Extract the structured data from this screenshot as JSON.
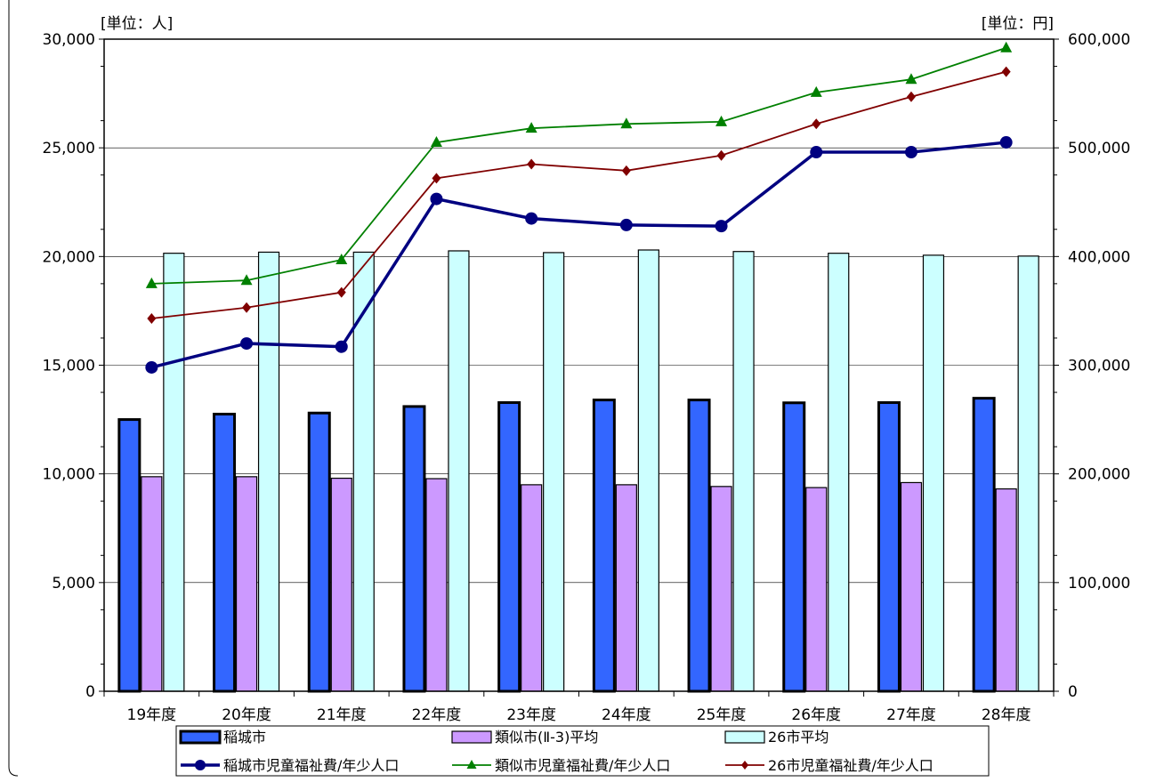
{
  "chart_data": {
    "type": "bar",
    "categories": [
      "19年度",
      "20年度",
      "21年度",
      "22年度",
      "23年度",
      "24年度",
      "25年度",
      "26年度",
      "27年度",
      "28年度"
    ],
    "left_axis": {
      "unit_label": "[単位：人]",
      "ylim": [
        0,
        30000
      ],
      "ticks": [
        0,
        5000,
        10000,
        15000,
        20000,
        25000,
        30000
      ],
      "tick_labels": [
        "0",
        "5,000",
        "10,000",
        "15,000",
        "20,000",
        "25,000",
        "30,000"
      ]
    },
    "right_axis": {
      "unit_label": "[単位：円]",
      "ylim": [
        0,
        600000
      ],
      "ticks": [
        0,
        100000,
        200000,
        300000,
        400000,
        500000,
        600000
      ],
      "tick_labels": [
        "0",
        "100,000",
        "200,000",
        "300,000",
        "400,000",
        "500,000",
        "600,000"
      ]
    },
    "bar_series": [
      {
        "name": "稲城市",
        "color": "#3366ff",
        "values": [
          12500,
          12750,
          12800,
          13100,
          13280,
          13400,
          13400,
          13270,
          13280,
          13480
        ]
      },
      {
        "name": "類似市(Ⅱ-3)平均",
        "color": "#cc99ff",
        "values": [
          9870,
          9870,
          9800,
          9780,
          9500,
          9500,
          9420,
          9370,
          9600,
          9310
        ]
      },
      {
        "name": "26市平均",
        "color": "#ccffff",
        "values": [
          20150,
          20200,
          20200,
          20260,
          20180,
          20300,
          20230,
          20150,
          20060,
          20020
        ]
      }
    ],
    "line_series": [
      {
        "name": "稲城市児童福祉費/年少人口",
        "color": "#000080",
        "marker": "circle",
        "axis": "right",
        "values": [
          298000,
          320000,
          317000,
          453000,
          435000,
          429000,
          428000,
          496000,
          496000,
          505000
        ]
      },
      {
        "name": "類似市児童福祉費/年少人口",
        "color": "#008000",
        "marker": "triangle",
        "axis": "right",
        "values": [
          375000,
          378000,
          397000,
          505000,
          518000,
          522000,
          524000,
          551000,
          563000,
          592000
        ]
      },
      {
        "name": "26市児童福祉費/年少人口",
        "color": "#800000",
        "marker": "diamond",
        "axis": "right",
        "values": [
          343000,
          353000,
          367000,
          472000,
          485000,
          479000,
          493000,
          522000,
          547000,
          570000
        ]
      }
    ],
    "grid": true,
    "legend_position": "bottom"
  }
}
